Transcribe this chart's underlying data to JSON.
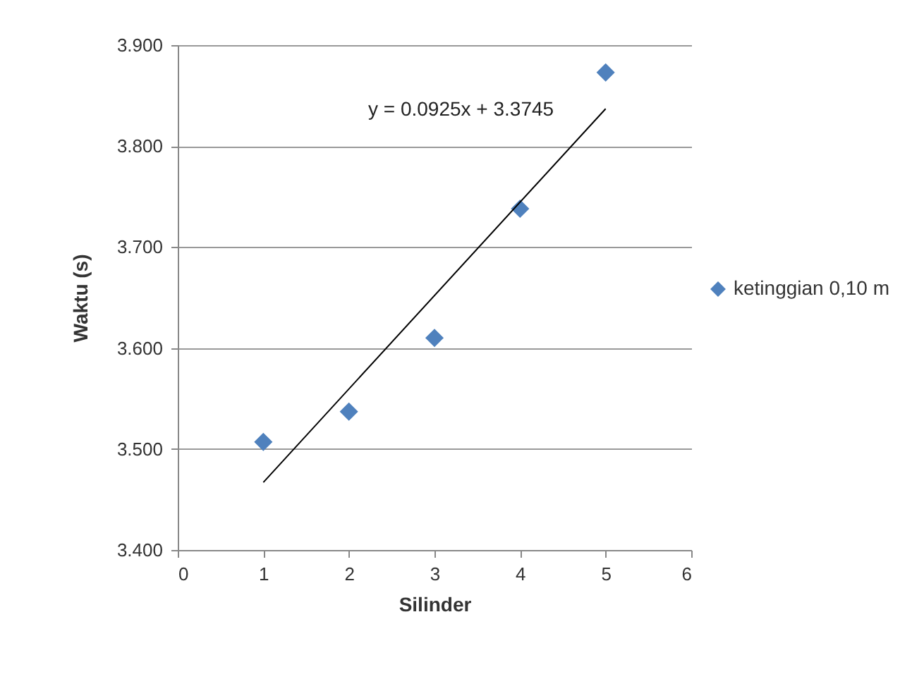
{
  "chart_data": {
    "type": "scatter",
    "xlabel": "Silinder",
    "ylabel": "Waktu (s)",
    "x": [
      1,
      2,
      3,
      4,
      5
    ],
    "series": [
      {
        "name": "ketinggian 0,10 m",
        "color": "#4f81bd",
        "values": [
          3.507,
          3.537,
          3.61,
          3.738,
          3.873
        ]
      },
      {
        "type": "line",
        "marker": "none",
        "color": "#000000",
        "x": [
          1,
          5
        ],
        "values": [
          3.467,
          3.837
        ]
      }
    ],
    "annotations": [
      "y = 0.0925x + 3.3745"
    ],
    "xlim": [
      0,
      6
    ],
    "xticks": [
      0,
      1,
      2,
      3,
      4,
      5,
      6
    ],
    "ylim": [
      3.4,
      3.9
    ],
    "yticks": [
      {
        "value": 3.4,
        "label": "3.400"
      },
      {
        "value": 3.5,
        "label": "3.500"
      },
      {
        "value": 3.6,
        "label": "3.600"
      },
      {
        "value": 3.7,
        "label": "3.700"
      },
      {
        "value": 3.8,
        "label": "3.800"
      },
      {
        "value": 3.9,
        "label": "3.900"
      }
    ],
    "grid": "y",
    "legend": "right",
    "marker": "diamond"
  }
}
